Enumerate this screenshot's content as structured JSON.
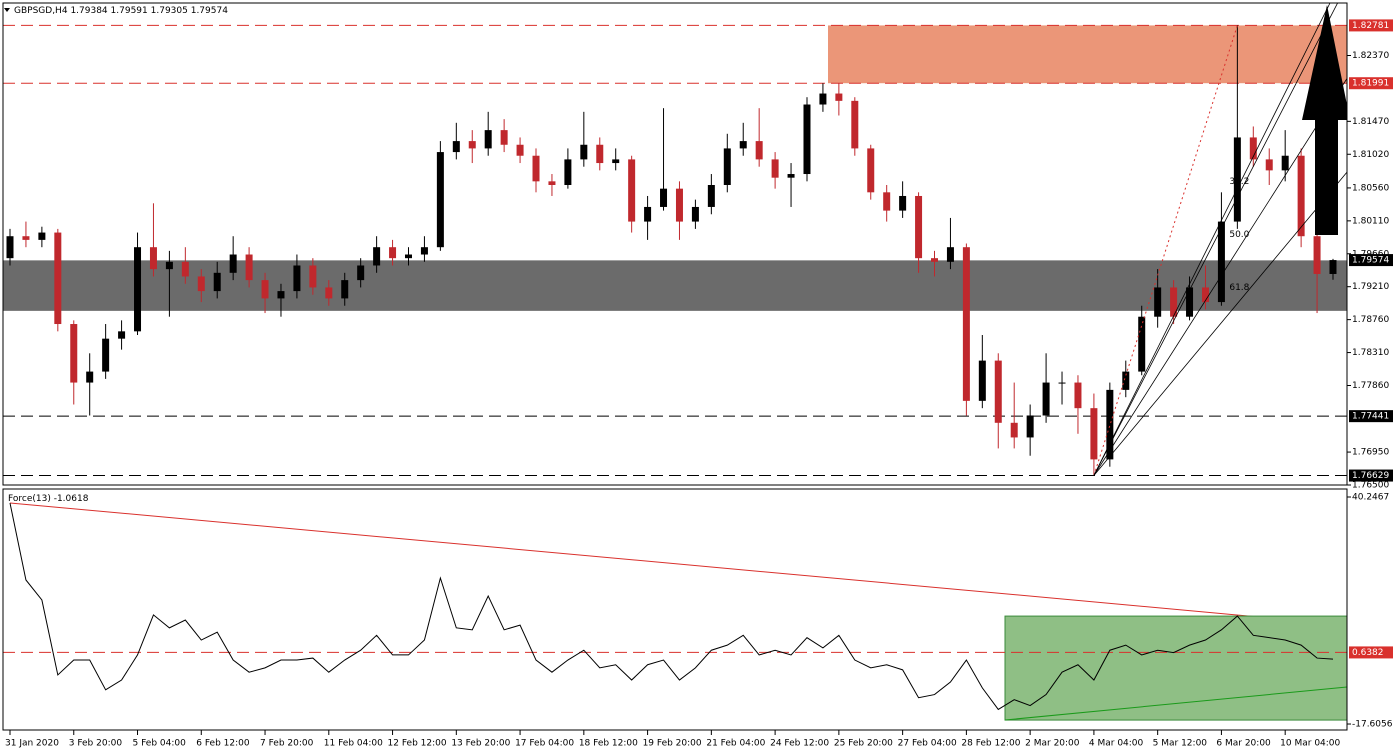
{
  "chart_data": [
    {
      "type": "candlestick",
      "title": "GBPSGD,H4",
      "categories": [
        "31 Jan 2020",
        null,
        null,
        null,
        "3 Feb 20:00",
        null,
        null,
        null,
        "5 Feb 04:00",
        null,
        null,
        null,
        "6 Feb 12:00",
        null,
        null,
        null,
        "7 Feb 20:00",
        null,
        null,
        null,
        "11 Feb 04:00",
        null,
        null,
        null,
        "12 Feb 12:00",
        null,
        null,
        null,
        "13 Feb 20:00",
        null,
        null,
        null,
        "17 Feb 04:00",
        null,
        null,
        null,
        "18 Feb 12:00",
        null,
        null,
        null,
        "19 Feb 20:00",
        null,
        null,
        null,
        "21 Feb 04:00",
        null,
        null,
        null,
        "24 Feb 12:00",
        null,
        null,
        null,
        "25 Feb 20:00",
        null,
        null,
        null,
        "27 Feb 04:00",
        null,
        null,
        null,
        "28 Feb 12:00",
        null,
        null,
        null,
        "2 Mar 20:00",
        null,
        null,
        null,
        "4 Mar 04:00",
        null,
        null,
        null,
        "5 Mar 12:00",
        null,
        null,
        null,
        "6 Mar 20:00",
        null,
        null,
        null,
        "10 Mar 04:00",
        null,
        null,
        null
      ],
      "open": [
        1.796,
        1.799,
        1.7985,
        1.7995,
        1.787,
        1.779,
        1.7805,
        1.785,
        1.786,
        1.7975,
        1.7945,
        1.7955,
        1.7935,
        1.7915,
        1.794,
        1.7965,
        1.793,
        1.7905,
        1.7915,
        1.795,
        1.792,
        1.7905,
        1.793,
        1.795,
        1.7975,
        1.796,
        1.7965,
        1.7975,
        1.8105,
        1.812,
        1.811,
        1.8135,
        1.8115,
        1.81,
        1.8065,
        1.806,
        1.8095,
        1.8115,
        1.809,
        1.8095,
        1.801,
        1.803,
        1.8055,
        1.801,
        1.803,
        1.806,
        1.811,
        1.812,
        1.8095,
        1.807,
        1.8075,
        1.817,
        1.8185,
        1.8175,
        1.811,
        1.805,
        1.8025,
        1.8045,
        1.796,
        1.7955,
        1.7975,
        1.7765,
        1.782,
        1.7735,
        1.7715,
        1.7745,
        1.779,
        1.779,
        1.7755,
        1.7685,
        1.778,
        1.7805,
        1.788,
        1.792,
        1.788,
        1.792,
        1.79,
        1.801,
        1.8125,
        1.8095,
        1.808,
        1.81,
        1.799,
        1.79384
      ],
      "high": [
        1.8,
        1.801,
        1.8003,
        1.8,
        1.7875,
        1.783,
        1.787,
        1.7875,
        1.7995,
        1.8035,
        1.797,
        1.7975,
        1.7945,
        1.7955,
        1.799,
        1.7975,
        1.794,
        1.7925,
        1.7965,
        1.796,
        1.793,
        1.794,
        1.796,
        1.799,
        1.7985,
        1.7975,
        1.799,
        1.812,
        1.8145,
        1.8135,
        1.816,
        1.815,
        1.8125,
        1.811,
        1.8075,
        1.811,
        1.816,
        1.8125,
        1.811,
        1.81,
        1.8045,
        1.8165,
        1.8065,
        1.804,
        1.8075,
        1.813,
        1.8145,
        1.8165,
        1.8105,
        1.809,
        1.818,
        1.8199,
        1.8199,
        1.818,
        1.8115,
        1.806,
        1.8065,
        1.805,
        1.797,
        1.8015,
        1.798,
        1.7855,
        1.783,
        1.779,
        1.776,
        1.783,
        1.7805,
        1.78,
        1.7775,
        1.779,
        1.782,
        1.7895,
        1.7945,
        1.793,
        1.7935,
        1.795,
        1.805,
        1.82781,
        1.814,
        1.811,
        1.8135,
        1.811,
        1.8,
        1.79591
      ],
      "low": [
        1.795,
        1.7975,
        1.7975,
        1.786,
        1.776,
        1.7745,
        1.7795,
        1.7835,
        1.7855,
        1.7935,
        1.788,
        1.7925,
        1.79,
        1.7905,
        1.793,
        1.792,
        1.7885,
        1.788,
        1.7905,
        1.791,
        1.7895,
        1.7895,
        1.792,
        1.794,
        1.795,
        1.795,
        1.7955,
        1.797,
        1.8095,
        1.809,
        1.81,
        1.8105,
        1.809,
        1.805,
        1.8045,
        1.8055,
        1.8085,
        1.808,
        1.808,
        1.7995,
        1.7985,
        1.8025,
        1.7985,
        1.8,
        1.802,
        1.805,
        1.81,
        1.8085,
        1.8055,
        1.803,
        1.8065,
        1.816,
        1.8155,
        1.81,
        1.804,
        1.801,
        1.8015,
        1.794,
        1.7935,
        1.7945,
        1.7745,
        1.7755,
        1.77,
        1.77,
        1.769,
        1.7735,
        1.776,
        1.772,
        1.7663,
        1.7675,
        1.777,
        1.78,
        1.7865,
        1.787,
        1.7875,
        1.789,
        1.7895,
        1.8,
        1.8085,
        1.806,
        1.8065,
        1.7975,
        1.7885,
        1.79305
      ],
      "close": [
        1.799,
        1.7985,
        1.7995,
        1.787,
        1.779,
        1.7805,
        1.785,
        1.786,
        1.7975,
        1.7945,
        1.7955,
        1.7935,
        1.7915,
        1.794,
        1.7965,
        1.793,
        1.7905,
        1.7915,
        1.795,
        1.792,
        1.7905,
        1.793,
        1.795,
        1.7975,
        1.796,
        1.7965,
        1.7975,
        1.8105,
        1.812,
        1.811,
        1.8135,
        1.8115,
        1.81,
        1.8065,
        1.806,
        1.8095,
        1.8115,
        1.809,
        1.8095,
        1.801,
        1.803,
        1.8055,
        1.801,
        1.803,
        1.806,
        1.811,
        1.812,
        1.8095,
        1.807,
        1.8075,
        1.817,
        1.8185,
        1.8175,
        1.811,
        1.805,
        1.8025,
        1.8045,
        1.796,
        1.7955,
        1.7975,
        1.7765,
        1.782,
        1.7735,
        1.7715,
        1.7745,
        1.779,
        1.779,
        1.7755,
        1.7685,
        1.778,
        1.7805,
        1.788,
        1.792,
        1.788,
        1.792,
        1.79,
        1.801,
        1.8125,
        1.8095,
        1.808,
        1.81,
        1.799,
        1.79384,
        1.79574
      ],
      "up_color": "#000000",
      "down_color": "#c0282d",
      "ylim": [
        1.765,
        1.8306
      ],
      "yticks": [
        {
          "value": 1.8237,
          "label": "1.82370"
        },
        {
          "value": 1.8147,
          "label": "1.81470"
        },
        {
          "value": 1.8102,
          "label": "1.81020"
        },
        {
          "value": 1.8056,
          "label": "1.80560"
        },
        {
          "value": 1.8011,
          "label": "1.80110"
        },
        {
          "value": 1.7966,
          "label": "1.79660"
        },
        {
          "value": 1.7921,
          "label": "1.79210"
        },
        {
          "value": 1.7876,
          "label": "1.78760"
        },
        {
          "value": 1.7831,
          "label": "1.78310"
        },
        {
          "value": 1.7786,
          "label": "1.77860"
        },
        {
          "value": 1.7695,
          "label": "1.76950"
        },
        {
          "value": 1.765,
          "label": "1.76500"
        }
      ],
      "levels": [
        1.82781,
        1.81991,
        1.77441,
        1.76629
      ],
      "level_colors": [
        "#d9302c",
        "#d9302c",
        "#000000",
        "#000000"
      ],
      "resistance_zone_color": "#eb9678",
      "support_zone": [
        1.7888,
        1.7957
      ],
      "support_zone_color": "#6b6b6b",
      "fib_levels": [
        38.2,
        {
          "value": 50,
          "label": "50.0"
        },
        61.8
      ]
    },
    {
      "type": "line",
      "title": "Force(13)",
      "values": [
        38.7,
        19.1,
        14.0,
        -5.1,
        -1.3,
        -1.3,
        -8.9,
        -6.4,
        0,
        10.2,
        6.9,
        8.9,
        3.8,
        5.8,
        -1.3,
        -4.4,
        -3.3,
        -1.3,
        -1.3,
        -0.8,
        -4.4,
        -1.3,
        1.2,
        5.0,
        0,
        0,
        3.8,
        19.6,
        6.9,
        6.4,
        15.0,
        6.4,
        7.6,
        -1.3,
        -4.4,
        -1.3,
        1.2,
        -3.3,
        -2.5,
        -6.4,
        -2.5,
        -1.3,
        -6.4,
        -3.3,
        1.2,
        2.5,
        5.0,
        0,
        1.2,
        0,
        4.4,
        1.8,
        5.0,
        -1.3,
        -3.3,
        -2.5,
        -3.8,
        -10.9,
        -10.1,
        -6.9,
        -1.3,
        -8.4,
        -13.9,
        -11.4,
        -12.9,
        -10.1,
        -4.4,
        -2.5,
        -6.4,
        1.2,
        2.5,
        0,
        1.2,
        0.6,
        2.5,
        3.8,
        6.4,
        9.9,
        5.0,
        4.4,
        3.8,
        2.5,
        -0.8,
        -1.0618
      ],
      "color": "#000000",
      "ylim": [
        -19.13,
        42.03
      ],
      "yticks": [
        40.2467,
        -17.6056
      ],
      "level": 0.6382,
      "level_color": "#d9302c",
      "zone": [
        -16.6,
        9.9
      ],
      "zone_color": "#8fbf85"
    }
  ]
}
